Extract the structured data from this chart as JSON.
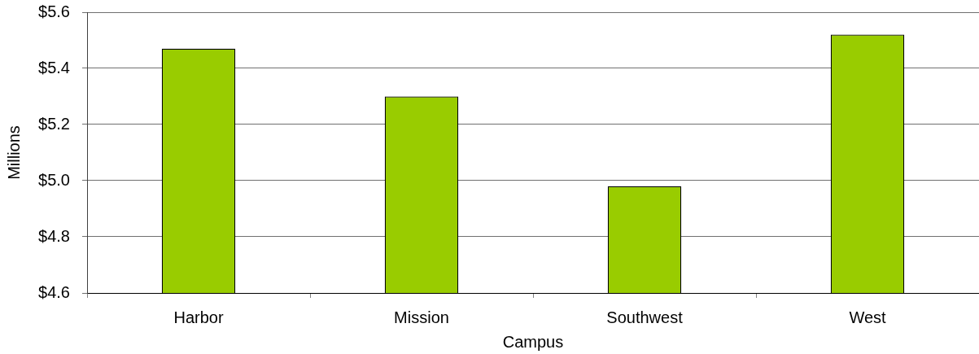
{
  "chart_data": {
    "type": "bar",
    "xlabel": "Campus",
    "ylabel": "Millions",
    "categories": [
      "Harbor",
      "Mission",
      "Southwest",
      "West"
    ],
    "values": [
      5.47,
      5.3,
      4.98,
      5.52
    ],
    "color": "#99cc00",
    "ylim": [
      4.6,
      5.6
    ],
    "yticks": [
      {
        "value": 4.6,
        "label": "$4.6"
      },
      {
        "value": 4.8,
        "label": "$4.8"
      },
      {
        "value": 5.0,
        "label": "$5.0"
      },
      {
        "value": 5.2,
        "label": "$5.2"
      },
      {
        "value": 5.4,
        "label": "$5.4"
      },
      {
        "value": 5.6,
        "label": "$5.6"
      }
    ],
    "grid": "y"
  }
}
